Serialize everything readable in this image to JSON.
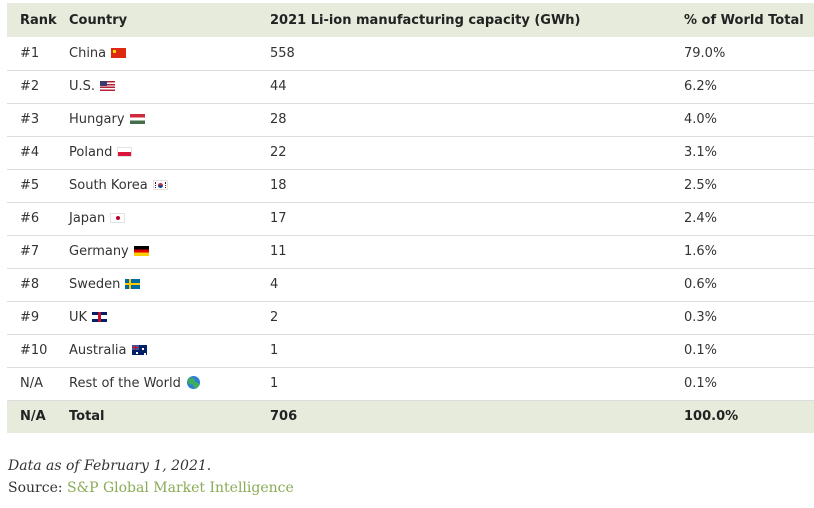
{
  "table": {
    "headers": {
      "rank": "Rank",
      "country": "Country",
      "capacity": "2021 Li-ion manufacturing capacity (GWh)",
      "share": "% of World Total"
    },
    "rows": [
      {
        "rank": "#1",
        "country": "China",
        "flag": "china-flag-icon",
        "capacity": "558",
        "share": "79.0%"
      },
      {
        "rank": "#2",
        "country": "U.S.",
        "flag": "us-flag-icon",
        "capacity": "44",
        "share": "6.2%"
      },
      {
        "rank": "#3",
        "country": "Hungary",
        "flag": "hungary-flag-icon",
        "capacity": "28",
        "share": "4.0%"
      },
      {
        "rank": "#4",
        "country": "Poland",
        "flag": "poland-flag-icon",
        "capacity": "22",
        "share": "3.1%"
      },
      {
        "rank": "#5",
        "country": "South Korea",
        "flag": "south-korea-flag-icon",
        "capacity": "18",
        "share": "2.5%"
      },
      {
        "rank": "#6",
        "country": "Japan",
        "flag": "japan-flag-icon",
        "capacity": "17",
        "share": "2.4%"
      },
      {
        "rank": "#7",
        "country": "Germany",
        "flag": "germany-flag-icon",
        "capacity": "11",
        "share": "1.6%"
      },
      {
        "rank": "#8",
        "country": "Sweden",
        "flag": "sweden-flag-icon",
        "capacity": "4",
        "share": "0.6%"
      },
      {
        "rank": "#9",
        "country": "UK",
        "flag": "uk-flag-icon",
        "capacity": "2",
        "share": "0.3%"
      },
      {
        "rank": "#10",
        "country": "Australia",
        "flag": "australia-flag-icon",
        "capacity": "1",
        "share": "0.1%"
      },
      {
        "rank": "N/A",
        "country": "Rest of the World",
        "flag": "globe-icon",
        "capacity": "1",
        "share": "0.1%"
      }
    ],
    "total": {
      "rank": "N/A",
      "country": "Total",
      "capacity": "706",
      "share": "100.0%"
    }
  },
  "footer": {
    "note": "Data as of February 1, 2021.",
    "source_label": "Source:",
    "source_link": "S&P Global Market Intelligence"
  },
  "colors": {
    "header_bg": "#e6ebdc",
    "link": "#8aab55",
    "row_border": "#dddddd"
  }
}
